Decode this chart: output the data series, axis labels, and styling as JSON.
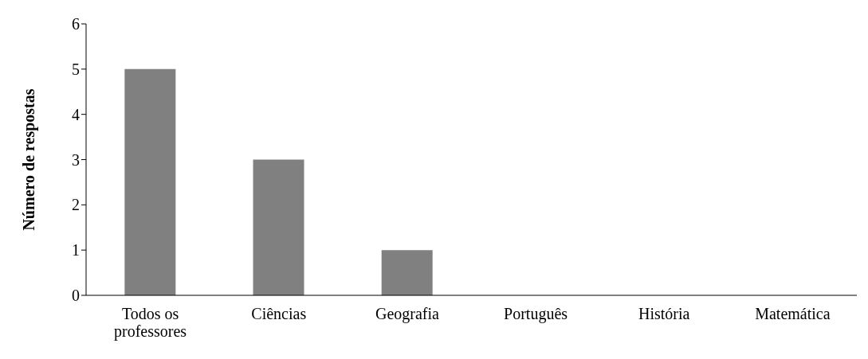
{
  "chart_data": {
    "type": "bar",
    "ylabel": "Número de respostas",
    "categories": [
      "Todos os professores",
      "Ciências",
      "Geografia",
      "Português",
      "História",
      "Matemática"
    ],
    "values": [
      5,
      3,
      1,
      0,
      0,
      0
    ],
    "color": "#808080",
    "ylim": [
      0,
      6
    ],
    "yticks": [
      0,
      1,
      2,
      3,
      4,
      5,
      6
    ],
    "grid": false,
    "legend": false
  }
}
